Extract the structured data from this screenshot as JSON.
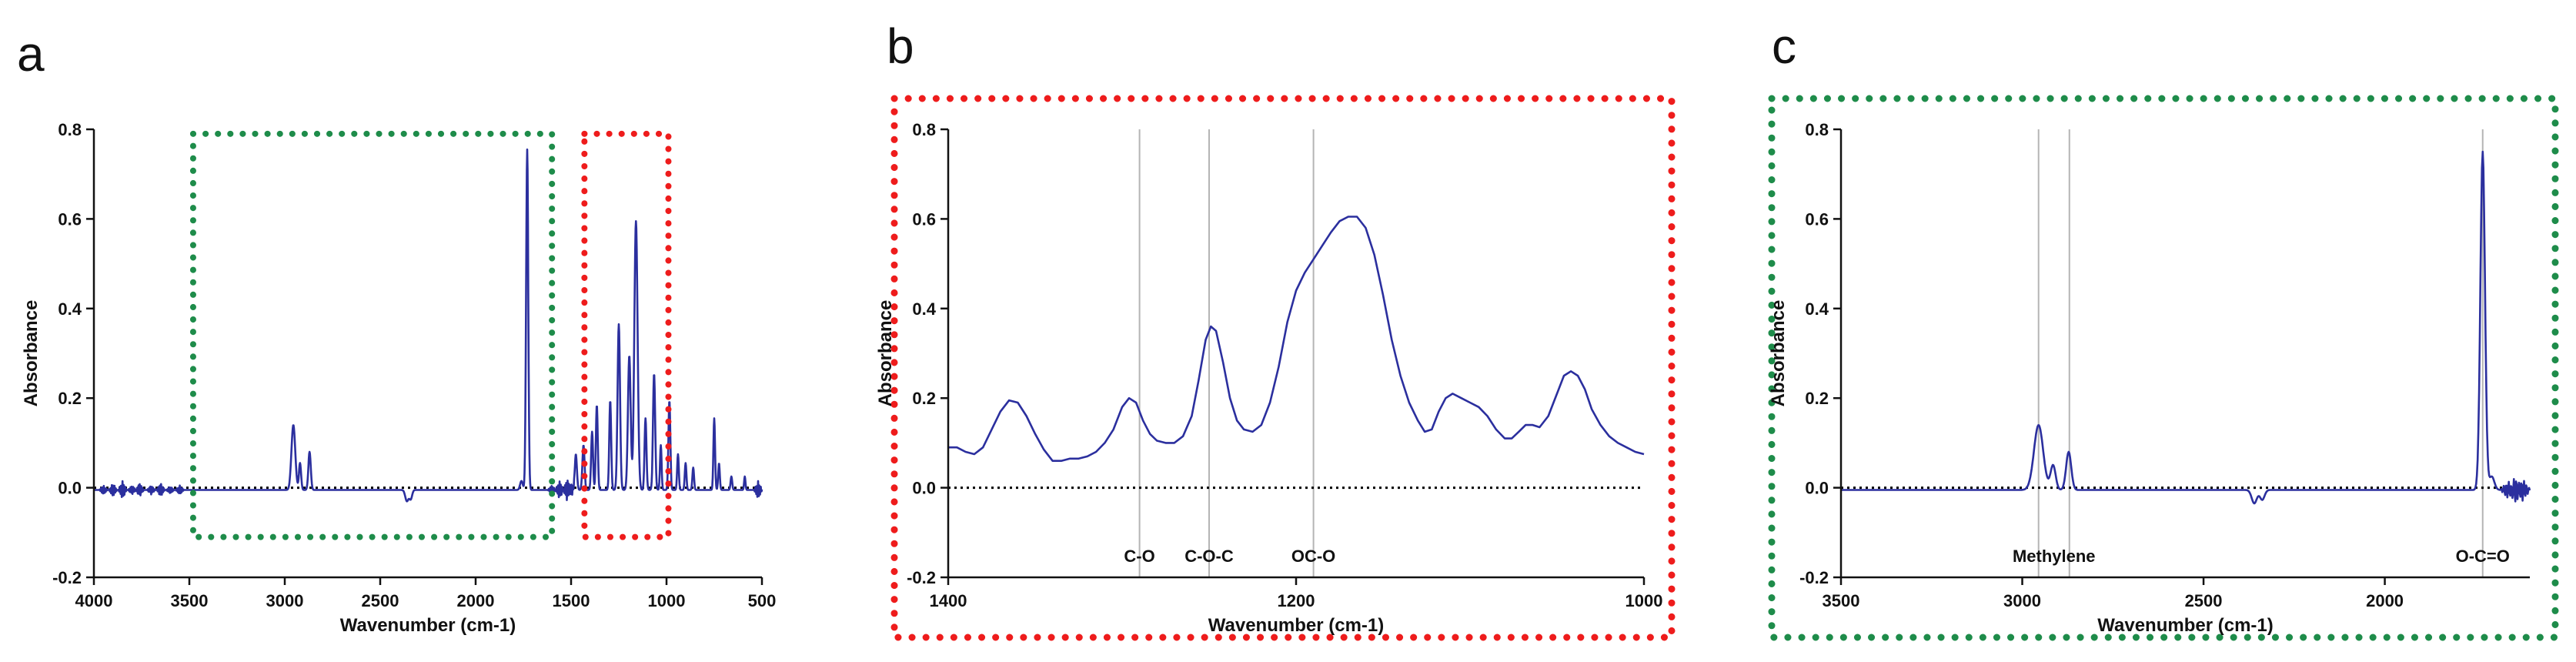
{
  "colors": {
    "series": "#2b2f9e",
    "zero_line": "#000000",
    "marker_line": "#b5b5b5",
    "box_green": "#1e8c4a",
    "box_red": "#ee1c1c"
  },
  "chart_data": [
    {
      "panel": "a",
      "type": "line",
      "xlabel": "Wavenumber (cm-1)",
      "ylabel": "Absorbance",
      "xlim": [
        4000,
        500
      ],
      "ylim": [
        -0.2,
        0.8
      ],
      "x_ticks": [
        4000,
        3500,
        3000,
        2500,
        2000,
        1500,
        1000,
        500
      ],
      "y_ticks": [
        -0.2,
        0.0,
        0.2,
        0.4,
        0.6,
        0.8
      ],
      "x_tick_labels": [
        "4000",
        "3500",
        "3000",
        "2500",
        "2000",
        "1500",
        "1000",
        "500"
      ],
      "y_tick_labels": [
        "-0.2",
        "0.0",
        "0.2",
        "0.4",
        "0.6",
        "0.8"
      ],
      "zero_line": true,
      "highlight_regions": [
        {
          "color": "green",
          "x_range": [
            3480,
            1600
          ],
          "y_range": [
            -0.11,
            0.79
          ]
        },
        {
          "color": "red",
          "x_range": [
            1430,
            990
          ],
          "y_range": [
            -0.11,
            0.79
          ]
        }
      ],
      "baseline": -0.005,
      "peaks": [
        {
          "x": 2955,
          "y": 0.145,
          "w": 14
        },
        {
          "x": 2920,
          "y": 0.06,
          "w": 8
        },
        {
          "x": 2870,
          "y": 0.085,
          "w": 9
        },
        {
          "x": 2360,
          "y": -0.025,
          "w": 12
        },
        {
          "x": 2340,
          "y": -0.02,
          "w": 10
        },
        {
          "x": 1730,
          "y": 0.76,
          "w": 8
        },
        {
          "x": 1760,
          "y": 0.02,
          "w": 10
        },
        {
          "x": 1475,
          "y": 0.08,
          "w": 8
        },
        {
          "x": 1435,
          "y": 0.1,
          "w": 8
        },
        {
          "x": 1390,
          "y": 0.13,
          "w": 7
        },
        {
          "x": 1365,
          "y": 0.19,
          "w": 7
        },
        {
          "x": 1295,
          "y": 0.2,
          "w": 7
        },
        {
          "x": 1250,
          "y": 0.37,
          "w": 9
        },
        {
          "x": 1195,
          "y": 0.3,
          "w": 10
        },
        {
          "x": 1160,
          "y": 0.6,
          "w": 12
        },
        {
          "x": 1110,
          "y": 0.16,
          "w": 7
        },
        {
          "x": 1065,
          "y": 0.26,
          "w": 8
        },
        {
          "x": 1030,
          "y": 0.1,
          "w": 6
        },
        {
          "x": 985,
          "y": 0.2,
          "w": 7
        },
        {
          "x": 940,
          "y": 0.08,
          "w": 6
        },
        {
          "x": 900,
          "y": 0.06,
          "w": 6
        },
        {
          "x": 860,
          "y": 0.05,
          "w": 6
        },
        {
          "x": 750,
          "y": 0.16,
          "w": 6
        },
        {
          "x": 725,
          "y": 0.06,
          "w": 6
        },
        {
          "x": 660,
          "y": 0.03,
          "w": 6
        },
        {
          "x": 590,
          "y": 0.03,
          "w": 5
        }
      ],
      "noise": [
        {
          "x": 3950,
          "y": -0.01
        },
        {
          "x": 3900,
          "y": -0.015
        },
        {
          "x": 3850,
          "y": -0.02
        },
        {
          "x": 3800,
          "y": -0.01
        },
        {
          "x": 3760,
          "y": -0.015
        },
        {
          "x": 3700,
          "y": -0.01
        },
        {
          "x": 3650,
          "y": -0.015
        },
        {
          "x": 3600,
          "y": -0.008
        },
        {
          "x": 3550,
          "y": -0.01
        },
        {
          "x": 1600,
          "y": -0.01
        },
        {
          "x": 1560,
          "y": -0.02
        },
        {
          "x": 1520,
          "y": -0.025
        },
        {
          "x": 1500,
          "y": -0.015
        },
        {
          "x": 520,
          "y": -0.02
        }
      ]
    },
    {
      "panel": "b",
      "type": "line",
      "xlabel": "Wavenumber (cm-1)",
      "ylabel": "Absorbance",
      "xlim": [
        1400,
        1000
      ],
      "ylim": [
        -0.2,
        0.8
      ],
      "x_ticks": [
        1400,
        1200,
        1000
      ],
      "y_ticks": [
        -0.2,
        0.0,
        0.2,
        0.4,
        0.6,
        0.8
      ],
      "x_tick_labels": [
        "1400",
        "1200",
        "1000"
      ],
      "y_tick_labels": [
        "-0.2",
        "0.0",
        "0.2",
        "0.4",
        "0.6",
        "0.8"
      ],
      "zero_line": true,
      "frame_color": "red",
      "annotations": [
        {
          "label": "C-O",
          "x": 1290
        },
        {
          "label": "C-O-C",
          "x": 1250
        },
        {
          "label": "OC-O",
          "x": 1190
        }
      ],
      "points": [
        [
          1400,
          0.09
        ],
        [
          1395,
          0.09
        ],
        [
          1390,
          0.08
        ],
        [
          1385,
          0.075
        ],
        [
          1380,
          0.09
        ],
        [
          1375,
          0.13
        ],
        [
          1370,
          0.17
        ],
        [
          1365,
          0.195
        ],
        [
          1360,
          0.19
        ],
        [
          1355,
          0.16
        ],
        [
          1350,
          0.12
        ],
        [
          1345,
          0.085
        ],
        [
          1340,
          0.06
        ],
        [
          1335,
          0.06
        ],
        [
          1330,
          0.065
        ],
        [
          1325,
          0.065
        ],
        [
          1320,
          0.07
        ],
        [
          1315,
          0.08
        ],
        [
          1310,
          0.1
        ],
        [
          1305,
          0.13
        ],
        [
          1300,
          0.18
        ],
        [
          1296,
          0.2
        ],
        [
          1292,
          0.19
        ],
        [
          1288,
          0.15
        ],
        [
          1284,
          0.12
        ],
        [
          1280,
          0.105
        ],
        [
          1275,
          0.1
        ],
        [
          1270,
          0.1
        ],
        [
          1265,
          0.115
        ],
        [
          1260,
          0.16
        ],
        [
          1256,
          0.24
        ],
        [
          1252,
          0.33
        ],
        [
          1249,
          0.36
        ],
        [
          1246,
          0.35
        ],
        [
          1242,
          0.28
        ],
        [
          1238,
          0.2
        ],
        [
          1234,
          0.15
        ],
        [
          1230,
          0.13
        ],
        [
          1225,
          0.125
        ],
        [
          1220,
          0.14
        ],
        [
          1215,
          0.19
        ],
        [
          1210,
          0.27
        ],
        [
          1205,
          0.37
        ],
        [
          1200,
          0.44
        ],
        [
          1195,
          0.48
        ],
        [
          1190,
          0.51
        ],
        [
          1185,
          0.54
        ],
        [
          1180,
          0.57
        ],
        [
          1175,
          0.595
        ],
        [
          1170,
          0.605
        ],
        [
          1165,
          0.605
        ],
        [
          1160,
          0.58
        ],
        [
          1155,
          0.52
        ],
        [
          1150,
          0.43
        ],
        [
          1145,
          0.33
        ],
        [
          1140,
          0.25
        ],
        [
          1135,
          0.19
        ],
        [
          1130,
          0.15
        ],
        [
          1126,
          0.125
        ],
        [
          1122,
          0.13
        ],
        [
          1118,
          0.17
        ],
        [
          1114,
          0.2
        ],
        [
          1110,
          0.21
        ],
        [
          1105,
          0.2
        ],
        [
          1100,
          0.19
        ],
        [
          1095,
          0.18
        ],
        [
          1090,
          0.16
        ],
        [
          1085,
          0.13
        ],
        [
          1080,
          0.11
        ],
        [
          1076,
          0.11
        ],
        [
          1072,
          0.125
        ],
        [
          1068,
          0.14
        ],
        [
          1064,
          0.14
        ],
        [
          1060,
          0.135
        ],
        [
          1055,
          0.16
        ],
        [
          1050,
          0.21
        ],
        [
          1046,
          0.25
        ],
        [
          1042,
          0.26
        ],
        [
          1038,
          0.25
        ],
        [
          1034,
          0.22
        ],
        [
          1030,
          0.175
        ],
        [
          1025,
          0.14
        ],
        [
          1020,
          0.115
        ],
        [
          1015,
          0.1
        ],
        [
          1010,
          0.09
        ],
        [
          1005,
          0.08
        ],
        [
          1000,
          0.075
        ]
      ]
    },
    {
      "panel": "c",
      "type": "line",
      "xlabel": "Wavenumber (cm-1)",
      "ylabel": "Absorbance",
      "xlim": [
        3500,
        1600
      ],
      "ylim": [
        -0.2,
        0.8
      ],
      "x_ticks": [
        3500,
        3000,
        2500,
        2000
      ],
      "y_ticks": [
        -0.2,
        0.0,
        0.2,
        0.4,
        0.6,
        0.8
      ],
      "x_tick_labels": [
        "3500",
        "3000",
        "2500",
        "2000"
      ],
      "y_tick_labels": [
        "-0.2",
        "0.0",
        "0.2",
        "0.4",
        "0.6",
        "0.8"
      ],
      "zero_line": true,
      "frame_color": "green",
      "annotations": [
        {
          "label": "Methylene",
          "x": [
            2955,
            2870
          ]
        },
        {
          "label": "O-C=O",
          "x": 1730
        }
      ],
      "baseline": -0.005,
      "peaks": [
        {
          "x": 2955,
          "y": 0.145,
          "w": 18
        },
        {
          "x": 2915,
          "y": 0.055,
          "w": 10
        },
        {
          "x": 2872,
          "y": 0.085,
          "w": 10
        },
        {
          "x": 2360,
          "y": -0.03,
          "w": 10
        },
        {
          "x": 2338,
          "y": -0.022,
          "w": 9
        },
        {
          "x": 1730,
          "y": 0.755,
          "w": 9
        },
        {
          "x": 1705,
          "y": 0.03,
          "w": 10
        }
      ],
      "noise": [
        {
          "x": 1660,
          "y": -0.02
        },
        {
          "x": 1640,
          "y": -0.03
        },
        {
          "x": 1620,
          "y": -0.025
        }
      ]
    }
  ]
}
